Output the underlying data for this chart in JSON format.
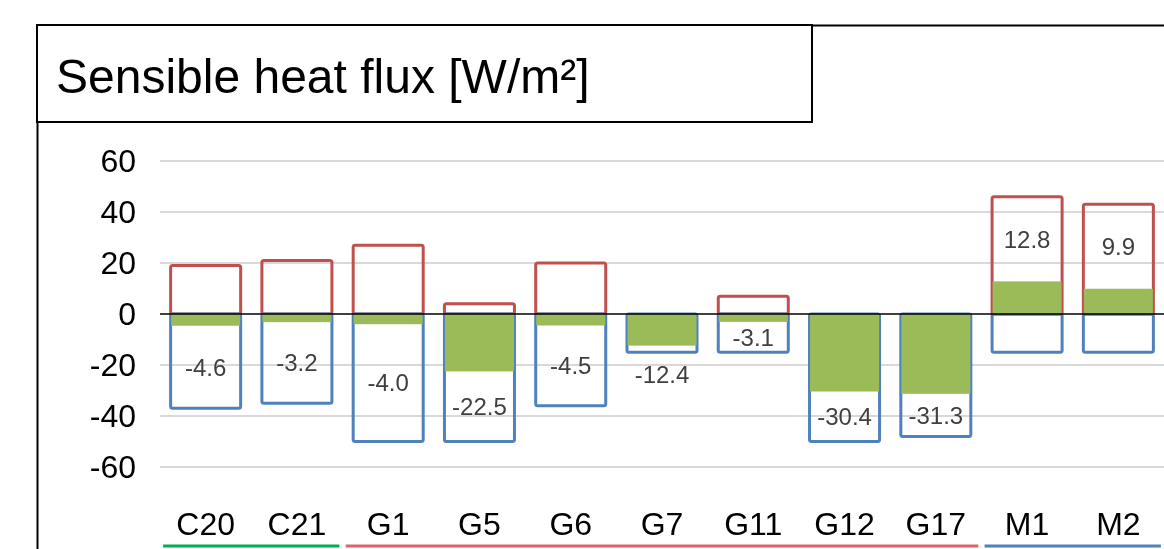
{
  "chart_data": {
    "type": "bar",
    "title": "Sensible heat flux [W/m²]",
    "categories": [
      "C20",
      "C21",
      "G1",
      "G5",
      "G6",
      "G7",
      "G11",
      "G12",
      "G17",
      "M1",
      "M2"
    ],
    "series": [
      {
        "color": "#c0504d",
        "values": [
          19,
          21,
          27,
          4,
          20,
          0,
          7,
          0,
          0,
          46,
          43
        ]
      },
      {
        "color": "#4f81bd",
        "values": [
          -37,
          -35,
          -50,
          -50,
          -36,
          -15,
          -15,
          -50,
          -48,
          -15,
          -15
        ]
      },
      {
        "color": "#9bbb59",
        "values": [
          -4.6,
          -3.2,
          -4.0,
          -22.5,
          -4.5,
          -12.4,
          -3.1,
          -30.4,
          -31.3,
          12.8,
          9.9
        ],
        "value_labels": [
          "-4.6",
          "-3.2",
          "-4.0",
          "-22.5",
          "-4.5",
          "-12.4",
          "-3.1",
          "-30.4",
          "-31.3",
          "12.8",
          "9.9"
        ]
      }
    ],
    "ylim": [
      -60,
      60
    ],
    "yticks": [
      -60,
      -40,
      -20,
      0,
      20,
      40,
      60
    ],
    "grid": "y"
  }
}
